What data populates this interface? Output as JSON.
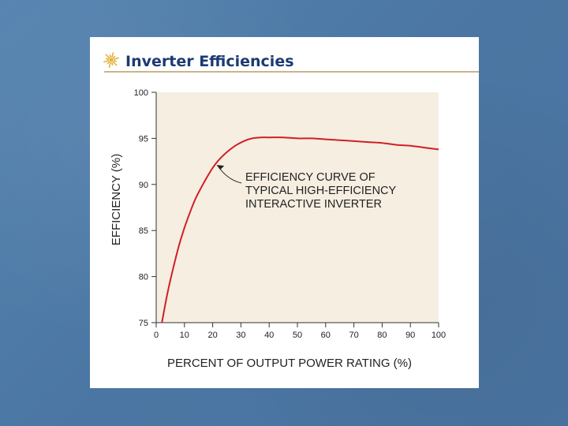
{
  "slide": {
    "title": "Inverter Efficiencies",
    "title_icon": "sunburst-icon",
    "colors": {
      "background": "#4d79a6",
      "panel": "#ffffff",
      "plot_background": "#f5eee1",
      "curve": "#d11f26",
      "title": "#1c3a72"
    }
  },
  "chart_data": {
    "type": "line",
    "title": "",
    "xlabel": "PERCENT OF OUTPUT POWER RATING (%)",
    "ylabel": "EFFICIENCY (%)",
    "xlim": [
      0,
      100
    ],
    "ylim": [
      75,
      100
    ],
    "x_ticks": [
      0,
      10,
      20,
      30,
      40,
      50,
      60,
      70,
      80,
      90,
      100
    ],
    "y_ticks": [
      75,
      80,
      85,
      90,
      95,
      100
    ],
    "grid": false,
    "series": [
      {
        "x": [
          2,
          4,
          6,
          8,
          10,
          12,
          14,
          16,
          18,
          20,
          22,
          25,
          28,
          31,
          34,
          37,
          40,
          45,
          50,
          55,
          60,
          65,
          70,
          75,
          80,
          85,
          90,
          95,
          100
        ],
        "y": [
          75.0,
          78.2,
          80.9,
          83.3,
          85.3,
          87.0,
          88.5,
          89.7,
          90.8,
          91.8,
          92.6,
          93.5,
          94.2,
          94.7,
          95.0,
          95.1,
          95.1,
          95.1,
          95.0,
          95.0,
          94.9,
          94.8,
          94.7,
          94.6,
          94.5,
          94.3,
          94.2,
          94.0,
          93.8
        ]
      }
    ],
    "annotation": {
      "lines": [
        "EFFICIENCY CURVE OF",
        "TYPICAL HIGH-EFFICIENCY",
        "INTERACTIVE INVERTER"
      ],
      "points_to": {
        "x": 21,
        "y": 92.2
      }
    }
  }
}
